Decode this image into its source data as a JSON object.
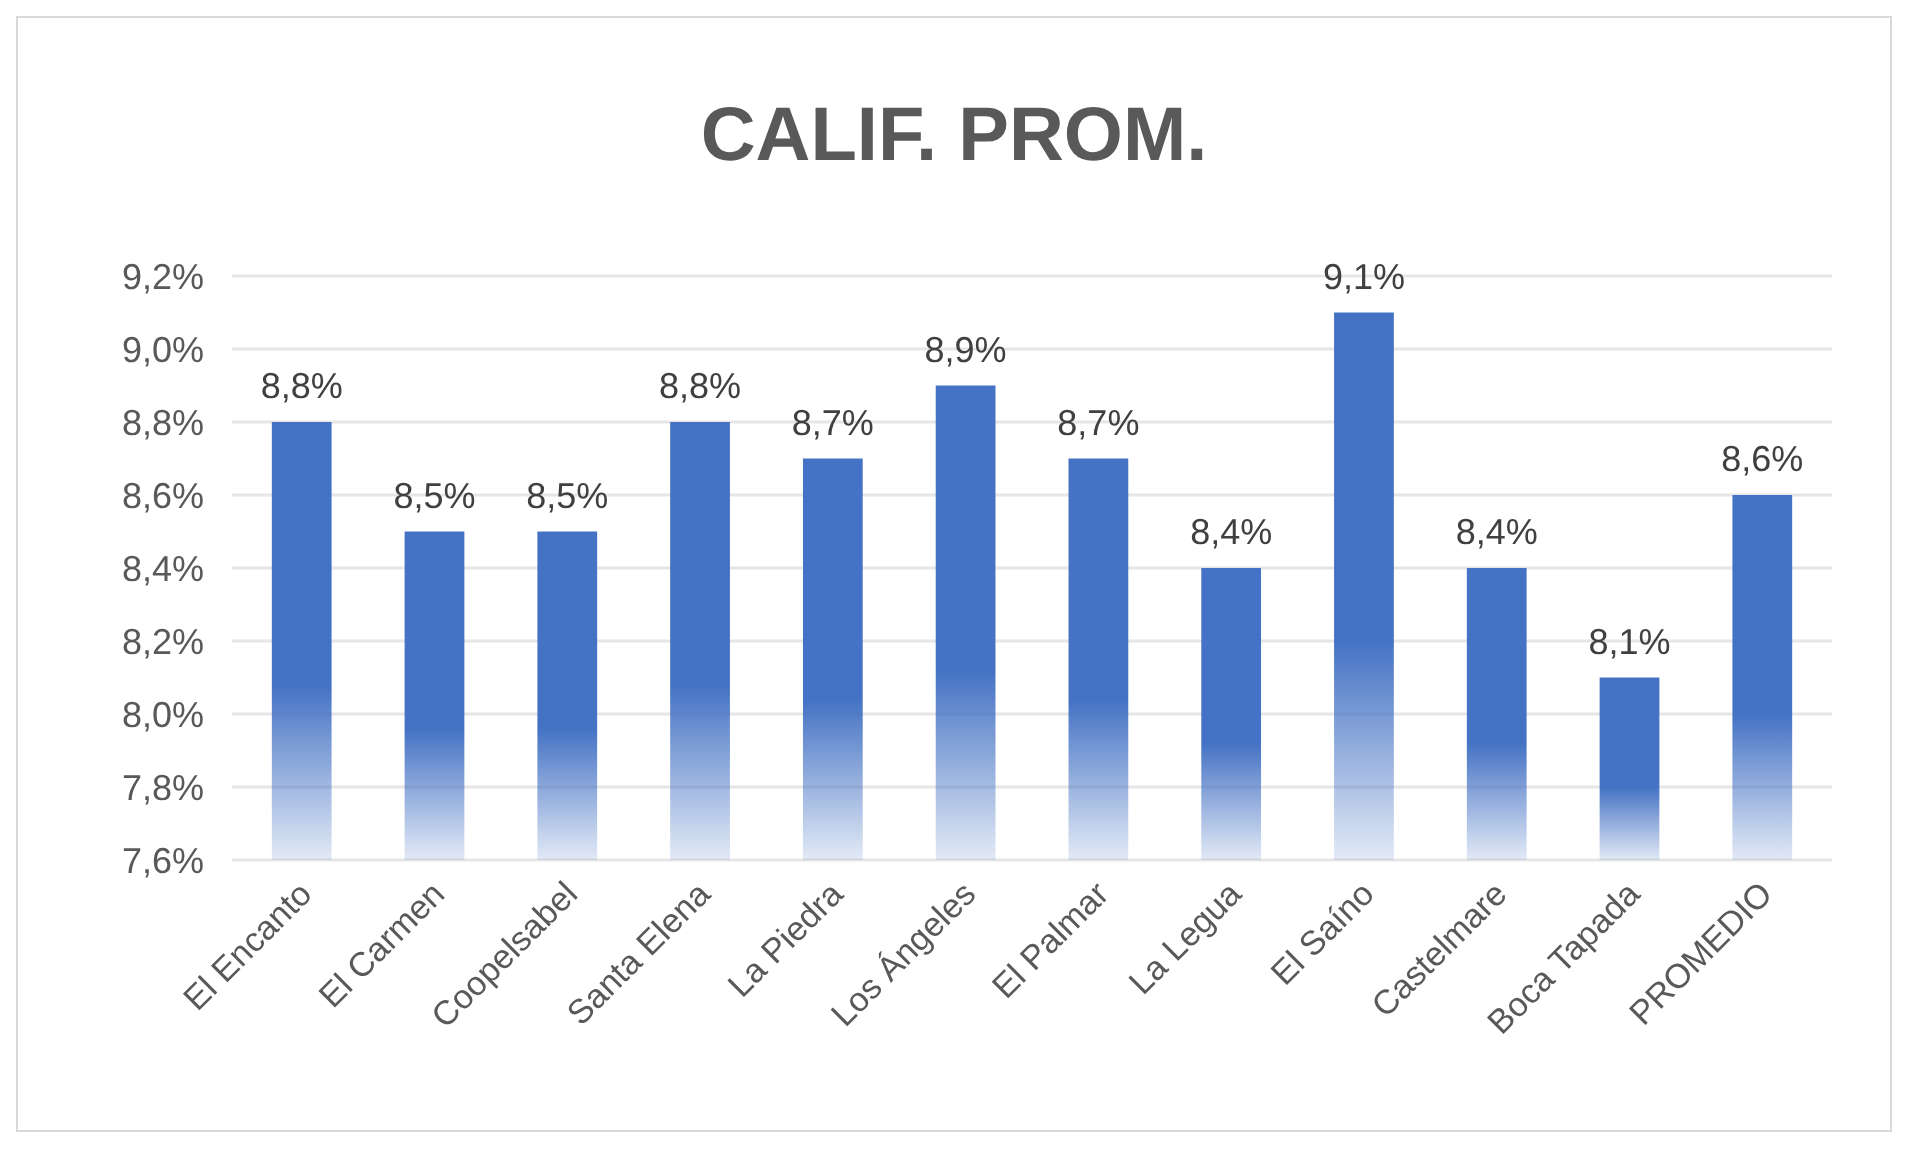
{
  "chart_data": {
    "type": "bar",
    "title": "CALIF. PROM.",
    "categories": [
      "El Encanto",
      "El Carmen",
      "Coopelsabel",
      "Santa Elena",
      "La Piedra",
      "Los Ángeles",
      "El Palmar",
      "La Legua",
      "El Saíno",
      "Castelmare",
      "Boca Tapada",
      "PROMEDIO"
    ],
    "values": [
      8.8,
      8.5,
      8.5,
      8.8,
      8.7,
      8.9,
      8.7,
      8.4,
      9.1,
      8.4,
      8.1,
      8.6
    ],
    "value_labels": [
      "8,8%",
      "8,5%",
      "8,5%",
      "8,8%",
      "8,7%",
      "8,9%",
      "8,7%",
      "8,4%",
      "9,1%",
      "8,4%",
      "8,1%",
      "8,6%"
    ],
    "color": "#4472c4",
    "ylim": [
      7.6,
      9.2
    ],
    "yticks": [
      {
        "value": 7.6,
        "label": "7,6%"
      },
      {
        "value": 7.8,
        "label": "7,8%"
      },
      {
        "value": 8.0,
        "label": "8,0%"
      },
      {
        "value": 8.2,
        "label": "8,2%"
      },
      {
        "value": 8.4,
        "label": "8,4%"
      },
      {
        "value": 8.6,
        "label": "8,6%"
      },
      {
        "value": 8.8,
        "label": "8,8%"
      },
      {
        "value": 9.0,
        "label": "9,0%"
      },
      {
        "value": 9.2,
        "label": "9,2%"
      }
    ],
    "grid": "y"
  }
}
